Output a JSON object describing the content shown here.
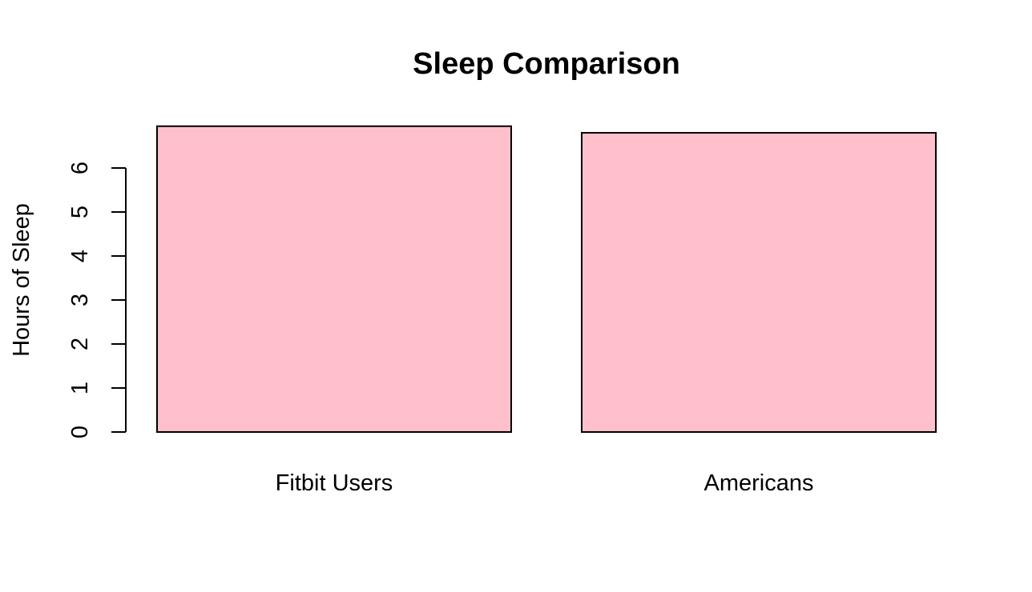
{
  "chart_data": {
    "type": "bar",
    "title": "Sleep Comparison",
    "xlabel": "",
    "ylabel": "Hours of Sleep",
    "categories": [
      "Fitbit Users",
      "Americans"
    ],
    "values": [
      6.95,
      6.8
    ],
    "ylim": [
      0,
      7
    ],
    "yticks": [
      0,
      1,
      2,
      3,
      4,
      5,
      6
    ],
    "bar_color": "#FFC0CB",
    "grid": false,
    "legend": "none"
  }
}
